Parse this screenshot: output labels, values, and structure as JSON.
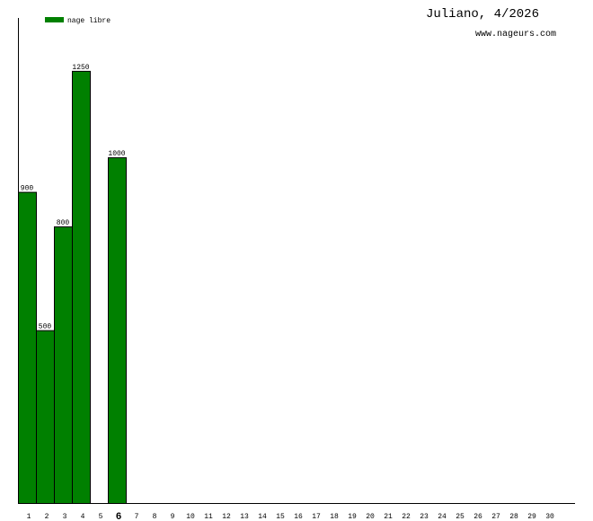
{
  "chart_data": {
    "type": "bar",
    "title": "Juliano, 4/2026",
    "subtitle": "www.nageurs.com",
    "categories": [
      "1",
      "2",
      "3",
      "4",
      "5",
      "6",
      "7",
      "8",
      "9",
      "10",
      "11",
      "12",
      "13",
      "14",
      "15",
      "16",
      "17",
      "18",
      "19",
      "20",
      "21",
      "22",
      "23",
      "24",
      "25",
      "26",
      "27",
      "28",
      "29",
      "30"
    ],
    "series": [
      {
        "name": "nage libre",
        "color": "#008000",
        "values": [
          900,
          500,
          800,
          1250,
          null,
          1000,
          null,
          null,
          null,
          null,
          null,
          null,
          null,
          null,
          null,
          null,
          null,
          null,
          null,
          null,
          null,
          null,
          null,
          null,
          null,
          null,
          null,
          null,
          null,
          null
        ]
      }
    ],
    "ylim": [
      0,
      1403
    ],
    "highlight": "6",
    "legend": "top-left"
  }
}
